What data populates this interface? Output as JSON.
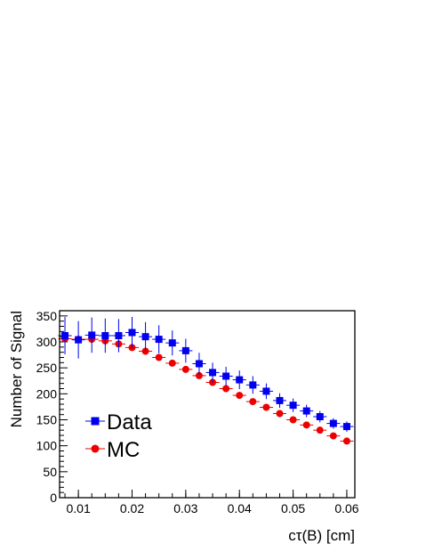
{
  "chart_data": {
    "type": "scatter",
    "xlabel": "cτ(B) [cm]",
    "ylabel": "Number of Signal",
    "xlim": [
      0.0065,
      0.0615
    ],
    "ylim": [
      0,
      360
    ],
    "x_ticks": [
      "0.01",
      "0.02",
      "0.03",
      "0.04",
      "0.05",
      "0.06"
    ],
    "y_ticks": [
      "0",
      "50",
      "100",
      "150",
      "200",
      "250",
      "300",
      "350"
    ],
    "legend_position": "left-middle",
    "x": [
      0.0075,
      0.01,
      0.0125,
      0.015,
      0.0175,
      0.02,
      0.0225,
      0.025,
      0.0275,
      0.03,
      0.0325,
      0.035,
      0.0375,
      0.04,
      0.0425,
      0.045,
      0.0475,
      0.05,
      0.0525,
      0.055,
      0.0575,
      0.06
    ],
    "series": [
      {
        "name": "Data",
        "color": "#0000ee",
        "marker": "square",
        "values": [
          312,
          304,
          313,
          312,
          312,
          318,
          310,
          305,
          298,
          283,
          258,
          241,
          234,
          227,
          217,
          205,
          187,
          178,
          167,
          156,
          143,
          137
        ],
        "errors": [
          36,
          36,
          34,
          33,
          32,
          30,
          28,
          27,
          24,
          23,
          21,
          19,
          18,
          18,
          17,
          15,
          14,
          13,
          12,
          11,
          10,
          10
        ]
      },
      {
        "name": "MC",
        "color": "#ee0000",
        "marker": "circle",
        "values": [
          306,
          305,
          305,
          302,
          296,
          289,
          282,
          270,
          259,
          247,
          235,
          222,
          210,
          197,
          185,
          174,
          162,
          150,
          140,
          130,
          119,
          109
        ],
        "errors": [
          3,
          3,
          3,
          3,
          3,
          3,
          3,
          3,
          3,
          3,
          3,
          3,
          3,
          3,
          3,
          2,
          2,
          2,
          2,
          2,
          2,
          2
        ]
      }
    ]
  }
}
